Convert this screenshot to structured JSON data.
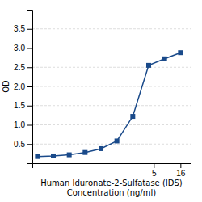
{
  "chart_data": {
    "type": "line",
    "x_label": "Human Iduronate-2-Sulfatase (IDS)\nConcentration (ng/ml)",
    "y_label": "OD",
    "x": [
      0.0313,
      0.0625,
      0.125,
      0.25,
      0.5,
      1,
      2,
      4,
      8,
      16
    ],
    "series": [
      {
        "color": "#1a4a8a",
        "marker": "square",
        "values": [
          0.175,
          0.19,
          0.22,
          0.28,
          0.38,
          0.58,
          1.22,
          2.55,
          2.72,
          2.88
        ]
      }
    ],
    "xlim": [
      0.025,
      25
    ],
    "ylim": [
      0,
      4.0
    ],
    "xticks": [
      5,
      16
    ],
    "yticks": [
      0.5,
      {
        "value": 1.0,
        "label": "1.0"
      },
      1.5,
      {
        "value": 2.0,
        "label": "2.0"
      },
      2.5,
      {
        "value": 3.0,
        "label": "3.0"
      },
      3.5
    ],
    "log": "x",
    "grid": true
  }
}
